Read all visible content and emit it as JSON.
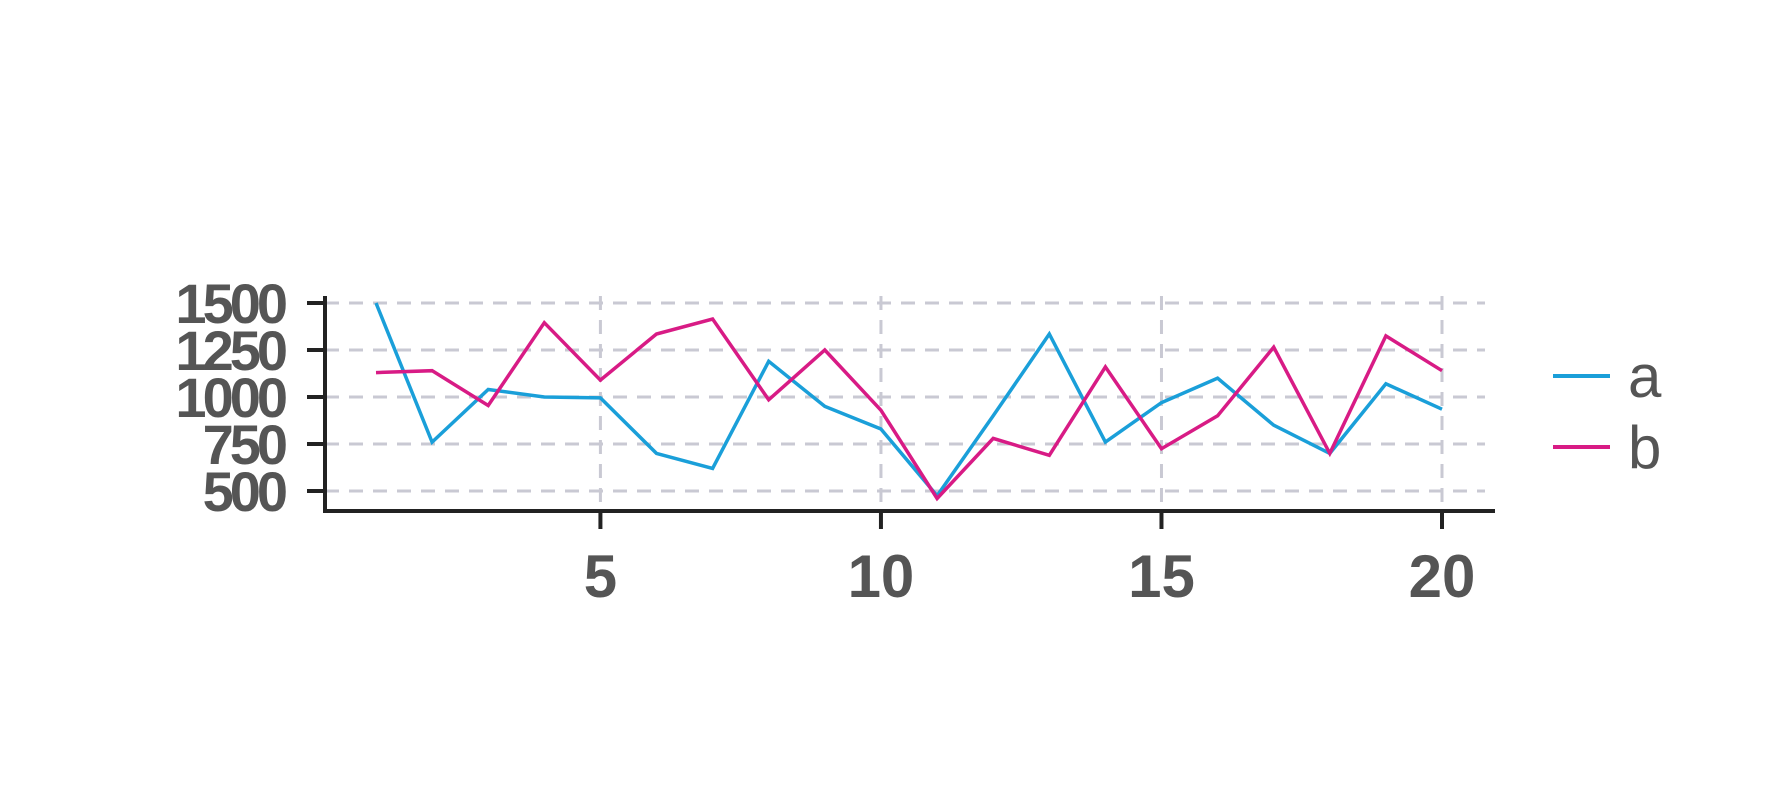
{
  "chart_data": {
    "type": "line",
    "title": "",
    "xlabel": "",
    "ylabel": "",
    "x": [
      1,
      2,
      3,
      4,
      5,
      6,
      7,
      8,
      9,
      10,
      11,
      12,
      13,
      14,
      15,
      16,
      17,
      18,
      19,
      20
    ],
    "xlim": [
      0,
      21
    ],
    "ylim": [
      400,
      1500
    ],
    "xticks": [
      5,
      10,
      15,
      20
    ],
    "yticks": [
      500,
      750,
      1000,
      1250,
      1500
    ],
    "x_tick_labels": [
      "5",
      "10",
      "15",
      "20"
    ],
    "y_tick_labels": [
      "500",
      "750",
      "1000",
      "1250",
      "1500"
    ],
    "grid": true,
    "legend_position": "right",
    "series": [
      {
        "name": "a",
        "color": "#1a9fd9",
        "values": [
          1500,
          760,
          1040,
          1000,
          995,
          700,
          620,
          1190,
          950,
          830,
          475,
          900,
          1335,
          760,
          970,
          1100,
          850,
          700,
          1070,
          935
        ]
      },
      {
        "name": "b",
        "color": "#d81b85",
        "values": [
          1130,
          1140,
          955,
          1395,
          1090,
          1335,
          1415,
          985,
          1250,
          930,
          460,
          780,
          690,
          1160,
          725,
          900,
          1265,
          700,
          1325,
          1140
        ]
      }
    ]
  }
}
